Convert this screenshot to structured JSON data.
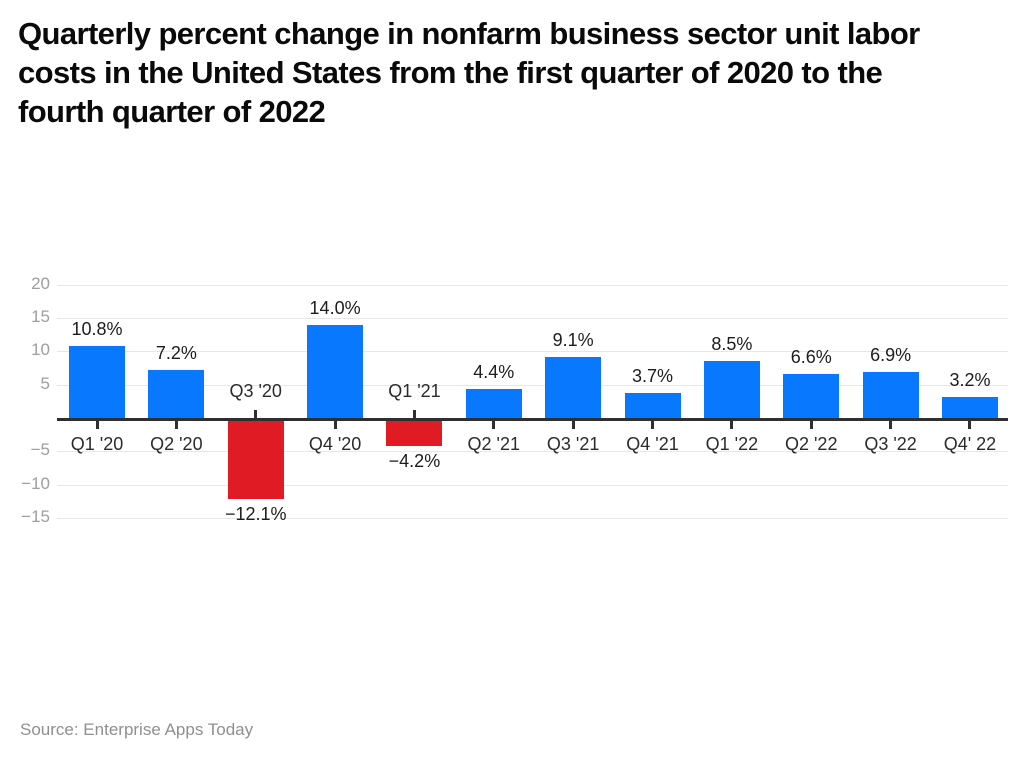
{
  "title": {
    "full": "Quarterly percent change in nonfarm business sector unit labor costs in the United States from the first quarter of 2020 to the fourth quarter of 2022",
    "lines": [
      "Quarterly percent change in nonfarm business sector unit labor",
      "costs in the United States from the first quarter of 2020 to the",
      "fourth quarter of 2022"
    ]
  },
  "source": {
    "text": "Source: Enterprise Apps Today"
  },
  "chart_data": {
    "type": "bar",
    "title": "Quarterly percent change in nonfarm business sector unit labor costs in the United States from the first quarter of 2020 to the fourth quarter of 2022",
    "categories": [
      "Q1 '20",
      "Q2 '20",
      "Q3 '20",
      "Q4 '20",
      "Q1 '21",
      "Q2 '21",
      "Q3 '21",
      "Q4 '21",
      "Q1 '22",
      "Q2 '22",
      "Q3 '22",
      "Q4' 22"
    ],
    "values": [
      10.8,
      7.2,
      -12.1,
      14.0,
      -4.2,
      4.4,
      9.1,
      3.7,
      8.5,
      6.6,
      6.9,
      3.2
    ],
    "value_labels": [
      "10.8%",
      "7.2%",
      "−12.1%",
      "14.0%",
      "−4.2%",
      "4.4%",
      "9.1%",
      "3.7%",
      "8.5%",
      "6.6%",
      "6.9%",
      "3.2%"
    ],
    "xlabel": "",
    "ylabel": "",
    "ylim": [
      -15,
      20
    ],
    "yticks": [
      20,
      15,
      10,
      5,
      -5,
      -10,
      -15
    ],
    "ytick_labels": [
      "20",
      "15",
      "10",
      "5",
      "−5",
      "−10",
      "−15"
    ],
    "grid": true,
    "legend": false,
    "zero_axis_labeled": false,
    "colors": {
      "positive_bar": "#0778ff",
      "negative_bar": "#e01b24",
      "axis": "#2f2f2f",
      "gridline": "#e7e7e7",
      "ytick_text": "#9e9e9e",
      "label_text": "#1c1c1c",
      "title_text": "#0a0a0a",
      "source_text": "#8f8f8f"
    }
  }
}
